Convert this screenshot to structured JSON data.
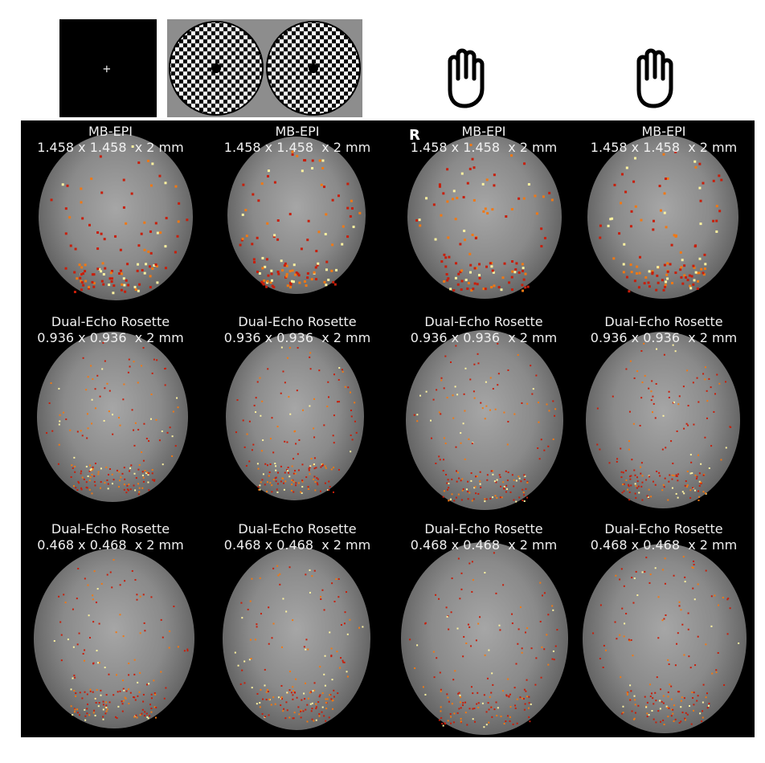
{
  "stimuli": {
    "fixation_symbol": "+",
    "fixation_icon": "crosshair-fixation",
    "checkerboard_icon": "flickering-checkerboard",
    "hand_icon_left": "raised-hand",
    "hand_icon_right": "raised-hand"
  },
  "orientation_label": "R",
  "rows": [
    {
      "sequence": "MB-EPI",
      "resolution": "1.458 x 1.458  x 2 mm"
    },
    {
      "sequence": "Dual-Echo Rosette",
      "resolution": "0.936 x 0.936  x 2 mm"
    },
    {
      "sequence": "Dual-Echo Rosette",
      "resolution": "0.468 x 0.468  x 2 mm"
    }
  ],
  "captions": [
    [
      "MB-EPI",
      "1.458 x 1.458  x 2 mm"
    ],
    [
      "MB-EPI",
      "1.458 x 1.458  x 2 mm"
    ],
    [
      "MB-EPI",
      "1.458 x 1.458  x 2 mm"
    ],
    [
      "MB-EPI",
      "1.458 x 1.458  x 2 mm"
    ],
    [
      "Dual-Echo Rosette",
      "0.936 x 0.936  x 2 mm"
    ],
    [
      "Dual-Echo Rosette",
      "0.936 x 0.936  x 2 mm"
    ],
    [
      "Dual-Echo Rosette",
      "0.936 x 0.936  x 2 mm"
    ],
    [
      "Dual-Echo Rosette",
      "0.936 x 0.936  x 2 mm"
    ],
    [
      "Dual-Echo Rosette",
      "0.468 x 0.468  x 2 mm"
    ],
    [
      "Dual-Echo Rosette",
      "0.468 x 0.468  x 2 mm"
    ],
    [
      "Dual-Echo Rosette",
      "0.468 x 0.468  x 2 mm"
    ],
    [
      "Dual-Echo Rosette",
      "0.468 x 0.468  x 2 mm"
    ]
  ],
  "colors": {
    "activation_low": "#c81e0a",
    "activation_mid": "#f07814",
    "activation_high": "#fff3a0",
    "panel_background": "#000000"
  }
}
